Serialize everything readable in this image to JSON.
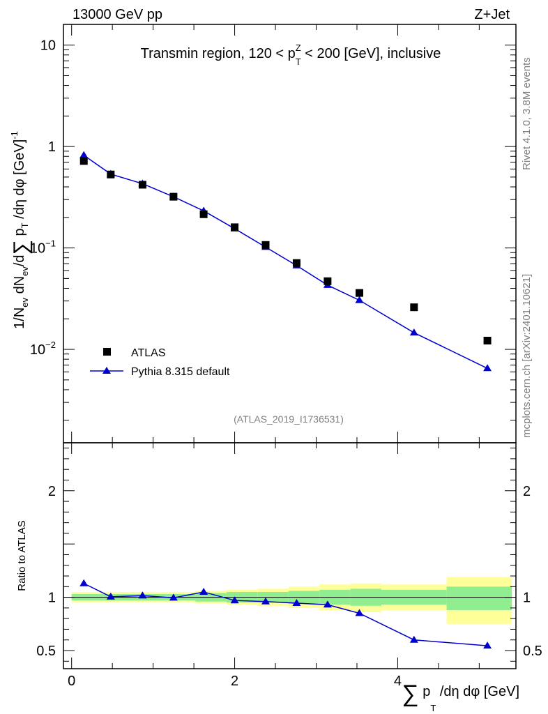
{
  "header": {
    "left": "13000 GeV pp",
    "right": "Z+Jet"
  },
  "side": {
    "rivet": "Rivet 4.1.0,  3.8M events",
    "source": "mcplots.cern.ch [arXiv:2401.10621]"
  },
  "chart_data": [
    {
      "type": "scatter",
      "panel": "main",
      "title": "Transmin region, 120 < p_T^Z < 200 [GeV], inclusive",
      "title_parts": {
        "a": "Transmin region, 120 < p",
        "sub": "T",
        "sup": "Z",
        "b": " < 200 [GeV], inclusive"
      },
      "ylabel": "1/N_ev dN_ev/d Σ p_T /dη dφ [GeV]^-1",
      "ylabel_parts": {
        "a": "1/N",
        "s1": "ev",
        "b": " dN",
        "s2": "ev",
        "c": "/d",
        "sum": "∑",
        "d": " p",
        "s3": "T",
        "e": " /dη dφ  [GeV]",
        "sup": "-1"
      },
      "yscale": "log",
      "ylim": [
        0.0012,
        16
      ],
      "xlim": [
        -0.1,
        5.45
      ],
      "y_ticks": [
        {
          "v": 10,
          "label": "10"
        },
        {
          "v": 1,
          "label": "1"
        },
        {
          "v": 0.1,
          "base": "10",
          "exp": "−1"
        },
        {
          "v": 0.01,
          "base": "10",
          "exp": "−2"
        }
      ],
      "watermark": "(ATLAS_2019_I1736531)",
      "legend": {
        "position": "bottom-left",
        "entries": [
          "ATLAS",
          "Pythia 8.315 default"
        ]
      },
      "series": [
        {
          "name": "ATLAS",
          "marker": "square",
          "color": "#000000",
          "x": [
            0.15,
            0.48,
            0.87,
            1.25,
            1.62,
            2.0,
            2.38,
            2.76,
            3.14,
            3.53,
            4.2,
            5.1
          ],
          "y": [
            0.72,
            0.53,
            0.42,
            0.32,
            0.215,
            0.16,
            0.107,
            0.071,
            0.047,
            0.036,
            0.026,
            0.0122
          ]
        },
        {
          "name": "Pythia 8.315 default",
          "marker": "triangle",
          "color": "#0000cc",
          "x": [
            0.15,
            0.48,
            0.87,
            1.25,
            1.62,
            2.0,
            2.38,
            2.76,
            3.14,
            3.53,
            4.2,
            5.1
          ],
          "y": [
            0.82,
            0.535,
            0.43,
            0.32,
            0.232,
            0.155,
            0.102,
            0.067,
            0.043,
            0.0305,
            0.0146,
            0.0065
          ]
        }
      ]
    },
    {
      "type": "line",
      "panel": "ratio",
      "ylabel": "Ratio to ATLAS",
      "xlabel": "Σ p_T /dη dφ [GeV]",
      "xlabel_parts": {
        "sum": "∑",
        "a": " p",
        "sub": "T",
        "b": " /dη dφ [GeV]"
      },
      "ylim": [
        0.33,
        2.45
      ],
      "xlim": [
        -0.1,
        5.45
      ],
      "y_ticks": [
        {
          "v": 2,
          "label": "2"
        },
        {
          "v": 1,
          "label": "1"
        },
        {
          "v": 0.5,
          "label": "0.5"
        }
      ],
      "x_ticks": [
        {
          "v": 0,
          "label": "0"
        },
        {
          "v": 2,
          "label": "2"
        },
        {
          "v": 4,
          "label": "4"
        }
      ],
      "reference_line": 1,
      "bands": {
        "edges": [
          0.0,
          0.38,
          0.76,
          1.14,
          1.52,
          1.9,
          2.28,
          2.66,
          3.04,
          3.42,
          3.8,
          4.6,
          5.4
        ],
        "inner_up": [
          1.03,
          1.03,
          1.03,
          1.03,
          1.04,
          1.05,
          1.05,
          1.06,
          1.07,
          1.08,
          1.07,
          1.1
        ],
        "inner_dn": [
          0.97,
          0.97,
          0.97,
          0.97,
          0.96,
          0.95,
          0.95,
          0.94,
          0.93,
          0.92,
          0.93,
          0.88
        ],
        "outer_up": [
          1.05,
          1.05,
          1.05,
          1.05,
          1.06,
          1.07,
          1.08,
          1.1,
          1.12,
          1.13,
          1.12,
          1.19
        ],
        "outer_dn": [
          0.95,
          0.95,
          0.95,
          0.95,
          0.94,
          0.93,
          0.92,
          0.9,
          0.88,
          0.86,
          0.88,
          0.75
        ],
        "inner_color": "#90ee90",
        "outer_color": "#ffff99"
      },
      "series": [
        {
          "name": "Pythia 8.315 default",
          "color": "#0000cc",
          "x": [
            0.15,
            0.48,
            0.87,
            1.25,
            1.62,
            2.0,
            2.38,
            2.76,
            3.14,
            3.53,
            4.2,
            5.1
          ],
          "y": [
            1.13,
            1.005,
            1.015,
            0.995,
            1.05,
            0.97,
            0.96,
            0.945,
            0.93,
            0.85,
            0.6,
            0.545
          ],
          "err": [
            0,
            0,
            0,
            0,
            0,
            0,
            0,
            0,
            0,
            0.015,
            0,
            0.025
          ]
        }
      ]
    }
  ]
}
